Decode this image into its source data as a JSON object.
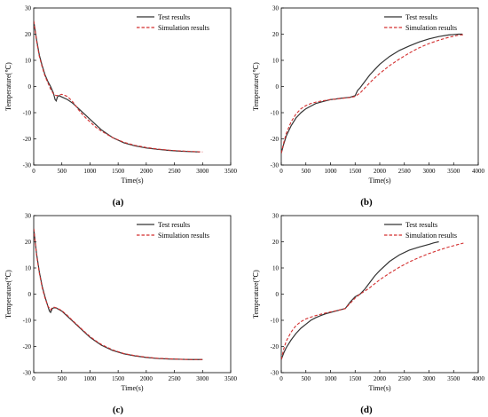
{
  "colors": {
    "test": "#333333",
    "simulation": "#d32f2f",
    "axis": "#000000"
  },
  "chart_data": [
    {
      "type": "line",
      "panel_label": "(a)",
      "xlabel": "Time(s)",
      "ylabel": "Temperature(℃)",
      "xlim": [
        0,
        3500
      ],
      "ylim": [
        -30,
        30
      ],
      "xticks": [
        0,
        500,
        1000,
        1500,
        2000,
        2500,
        3000,
        3500
      ],
      "yticks": [
        -30,
        -20,
        -10,
        0,
        10,
        20,
        30
      ],
      "grid": false,
      "legend_position": "top-right",
      "series": [
        {
          "name": "Test results",
          "style": "solid",
          "x": [
            0,
            50,
            100,
            150,
            200,
            250,
            300,
            350,
            380,
            400,
            420,
            450,
            500,
            600,
            700,
            800,
            900,
            1000,
            1100,
            1200,
            1400,
            1600,
            1800,
            2000,
            2200,
            2400,
            2600,
            2800,
            2950
          ],
          "y": [
            25,
            18,
            12,
            8,
            4.5,
            2,
            0,
            -2.5,
            -5,
            -5.5,
            -4,
            -3.5,
            -4,
            -5,
            -6.5,
            -8.5,
            -10.5,
            -12.5,
            -14.5,
            -16.5,
            -19.5,
            -21.5,
            -22.7,
            -23.5,
            -24,
            -24.4,
            -24.7,
            -24.9,
            -25
          ]
        },
        {
          "name": "Simulation results",
          "style": "dashed",
          "x": [
            0,
            50,
            100,
            150,
            200,
            250,
            300,
            350,
            400,
            450,
            500,
            600,
            700,
            800,
            900,
            1000,
            1100,
            1200,
            1400,
            1600,
            1800,
            2000,
            2200,
            2400,
            2600,
            2800,
            3000
          ],
          "y": [
            25,
            17.5,
            11.5,
            7.5,
            4,
            1.5,
            -1,
            -2.8,
            -3.5,
            -3.3,
            -3,
            -3.8,
            -6,
            -9,
            -11.5,
            -13.5,
            -15.5,
            -17,
            -19.5,
            -21.3,
            -22.5,
            -23.3,
            -23.9,
            -24.3,
            -24.6,
            -24.8,
            -25
          ]
        }
      ]
    },
    {
      "type": "line",
      "panel_label": "(b)",
      "xlabel": "Time(s)",
      "ylabel": "Temperature(℃)",
      "xlim": [
        0,
        4000
      ],
      "ylim": [
        -30,
        30
      ],
      "xticks": [
        0,
        500,
        1000,
        1500,
        2000,
        2500,
        3000,
        3500,
        4000
      ],
      "yticks": [
        -30,
        -20,
        -10,
        0,
        10,
        20,
        30
      ],
      "grid": false,
      "legend_position": "top-right",
      "series": [
        {
          "name": "Test results",
          "style": "solid",
          "x": [
            0,
            50,
            100,
            200,
            300,
            400,
            500,
            600,
            700,
            800,
            900,
            1000,
            1100,
            1200,
            1300,
            1400,
            1500,
            1550,
            1600,
            1700,
            1800,
            1900,
            2000,
            2200,
            2400,
            2600,
            2800,
            3000,
            3200,
            3400,
            3600,
            3680
          ],
          "y": [
            -25.5,
            -22,
            -19,
            -15,
            -12,
            -10,
            -8.5,
            -7.5,
            -6.5,
            -6,
            -5.5,
            -5,
            -4.8,
            -4.5,
            -4.3,
            -4.1,
            -3.5,
            -1.5,
            -0.5,
            2,
            4.5,
            6.5,
            8.5,
            11.5,
            13.8,
            15.5,
            17,
            18.2,
            19.1,
            19.7,
            20,
            20
          ]
        },
        {
          "name": "Simulation results",
          "style": "dashed",
          "x": [
            0,
            50,
            100,
            200,
            300,
            400,
            500,
            600,
            700,
            800,
            900,
            1000,
            1100,
            1200,
            1300,
            1400,
            1500,
            1600,
            1700,
            1800,
            1900,
            2000,
            2200,
            2400,
            2600,
            2800,
            3000,
            3200,
            3400,
            3600,
            3700
          ],
          "y": [
            -25.5,
            -21.5,
            -18,
            -13.5,
            -10.5,
            -8.5,
            -7.3,
            -6.5,
            -6,
            -5.6,
            -5.3,
            -5,
            -4.8,
            -4.6,
            -4.4,
            -4.2,
            -3.8,
            -2.5,
            -0.5,
            1.5,
            3.3,
            5,
            8,
            10.5,
            12.8,
            14.8,
            16.4,
            17.7,
            18.8,
            19.6,
            19.8
          ]
        }
      ]
    },
    {
      "type": "line",
      "panel_label": "(c)",
      "xlabel": "Time(s)",
      "ylabel": "Temperature(℃)",
      "xlim": [
        0,
        3500
      ],
      "ylim": [
        -30,
        30
      ],
      "xticks": [
        0,
        500,
        1000,
        1500,
        2000,
        2500,
        3000,
        3500
      ],
      "yticks": [
        -30,
        -20,
        -10,
        0,
        10,
        20,
        30
      ],
      "grid": false,
      "legend_position": "top-right",
      "series": [
        {
          "name": "Test results",
          "style": "solid",
          "x": [
            0,
            50,
            100,
            150,
            200,
            250,
            280,
            300,
            330,
            360,
            400,
            500,
            600,
            700,
            800,
            900,
            1000,
            1100,
            1200,
            1400,
            1600,
            1800,
            2000,
            2200,
            2400,
            2600,
            2800,
            3000
          ],
          "y": [
            25,
            15.5,
            8.5,
            3,
            -1,
            -4.5,
            -6.5,
            -7,
            -5.5,
            -5.2,
            -5.3,
            -6.5,
            -8.5,
            -10.5,
            -12.5,
            -14.5,
            -16.5,
            -18,
            -19.5,
            -21.5,
            -22.8,
            -23.6,
            -24.2,
            -24.6,
            -24.8,
            -24.9,
            -25,
            -25
          ]
        },
        {
          "name": "Simulation results",
          "style": "dashed",
          "x": [
            0,
            50,
            100,
            150,
            200,
            250,
            300,
            330,
            360,
            400,
            500,
            600,
            700,
            800,
            900,
            1000,
            1100,
            1200,
            1400,
            1600,
            1800,
            2000,
            2200,
            2400,
            2600,
            2800,
            3000
          ],
          "y": [
            25,
            15,
            8,
            2.5,
            -1.5,
            -4.5,
            -6,
            -5.2,
            -5,
            -5.2,
            -6.3,
            -8.2,
            -10.3,
            -12.3,
            -14.3,
            -16.2,
            -17.8,
            -19.2,
            -21.3,
            -22.7,
            -23.5,
            -24.1,
            -24.5,
            -24.7,
            -24.9,
            -25,
            -25
          ]
        }
      ]
    },
    {
      "type": "line",
      "panel_label": "(d)",
      "xlabel": "Time(s)",
      "ylabel": "Temperature(℃)",
      "xlim": [
        0,
        4000
      ],
      "ylim": [
        -30,
        30
      ],
      "xticks": [
        0,
        500,
        1000,
        1500,
        2000,
        2500,
        3000,
        3500,
        4000
      ],
      "yticks": [
        -30,
        -20,
        -10,
        0,
        10,
        20,
        30
      ],
      "grid": false,
      "legend_position": "top-right",
      "series": [
        {
          "name": "Test results",
          "style": "solid",
          "x": [
            0,
            50,
            100,
            200,
            300,
            400,
            500,
            600,
            700,
            800,
            900,
            1000,
            1100,
            1200,
            1300,
            1400,
            1500,
            1600,
            1700,
            1800,
            1900,
            2000,
            2200,
            2400,
            2600,
            2800,
            3000,
            3100,
            3200
          ],
          "y": [
            -25,
            -22.5,
            -20.5,
            -17.5,
            -15,
            -13,
            -11.5,
            -10,
            -9,
            -8.2,
            -7.5,
            -7,
            -6.5,
            -6,
            -5.5,
            -3,
            -1,
            0,
            2,
            4.5,
            7,
            9,
            12.5,
            15,
            16.8,
            18,
            19,
            19.6,
            20
          ]
        },
        {
          "name": "Simulation results",
          "style": "dashed",
          "x": [
            0,
            50,
            100,
            200,
            300,
            400,
            500,
            600,
            700,
            800,
            900,
            1000,
            1100,
            1200,
            1300,
            1400,
            1500,
            1600,
            1700,
            1800,
            1900,
            2000,
            2200,
            2400,
            2600,
            2800,
            3000,
            3200,
            3400,
            3600,
            3700
          ],
          "y": [
            -25,
            -21,
            -18,
            -14.5,
            -12,
            -10.5,
            -9.5,
            -8.8,
            -8.2,
            -7.7,
            -7.2,
            -6.8,
            -6.4,
            -6,
            -5.5,
            -3.5,
            -1.5,
            0,
            1.2,
            2.5,
            4,
            5.5,
            8,
            10.3,
            12.3,
            14,
            15.5,
            16.8,
            18,
            19,
            19.5
          ]
        }
      ]
    }
  ]
}
